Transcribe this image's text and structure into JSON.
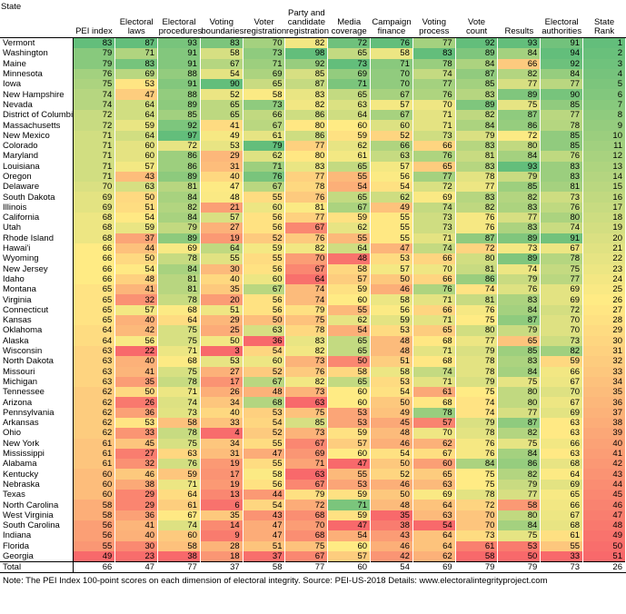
{
  "table": {
    "columns": [
      "State",
      "PEI index",
      "Electoral laws",
      "Electoral procedures",
      "Voting boundaries",
      "Voter registration",
      "Party and candidate registration",
      "Media coverage",
      "Campaign finance",
      "Voting process",
      "Vote count",
      "Results",
      "Electoral authorities",
      "State Rank"
    ],
    "rows": [
      [
        "Vermont",
        83,
        87,
        93,
        83,
        70,
        82,
        72,
        76,
        77,
        92,
        93,
        91,
        1
      ],
      [
        "Washington",
        79,
        71,
        91,
        58,
        73,
        98,
        65,
        58,
        83,
        89,
        84,
        94,
        2
      ],
      [
        "Maine",
        79,
        83,
        91,
        67,
        71,
        92,
        73,
        71,
        78,
        84,
        66,
        92,
        3
      ],
      [
        "Minnesota",
        76,
        69,
        88,
        54,
        69,
        85,
        69,
        70,
        74,
        87,
        82,
        84,
        4
      ],
      [
        "Iowa",
        75,
        53,
        91,
        90,
        65,
        87,
        71,
        70,
        77,
        85,
        77,
        77,
        5
      ],
      [
        "New Hampshire",
        74,
        47,
        88,
        52,
        58,
        83,
        65,
        67,
        76,
        83,
        89,
        90,
        6
      ],
      [
        "Nevada",
        74,
        64,
        89,
        65,
        73,
        82,
        63,
        57,
        70,
        89,
        75,
        85,
        7
      ],
      [
        "District of Columbi",
        72,
        64,
        85,
        65,
        66,
        86,
        64,
        67,
        71,
        82,
        87,
        77,
        8
      ],
      [
        "Massachusetts",
        72,
        59,
        92,
        41,
        67,
        80,
        60,
        60,
        71,
        84,
        86,
        78,
        9
      ],
      [
        "New Mexico",
        71,
        64,
        97,
        49,
        61,
        86,
        59,
        52,
        73,
        79,
        72,
        85,
        10
      ],
      [
        "Colorado",
        71,
        60,
        72,
        53,
        79,
        77,
        62,
        66,
        66,
        83,
        80,
        85,
        11
      ],
      [
        "Maryland",
        71,
        60,
        86,
        29,
        62,
        80,
        61,
        63,
        76,
        81,
        84,
        76,
        12
      ],
      [
        "Louisiana",
        71,
        57,
        86,
        31,
        71,
        83,
        65,
        57,
        65,
        83,
        93,
        83,
        13
      ],
      [
        "Oregon",
        71,
        43,
        89,
        40,
        76,
        77,
        55,
        56,
        77,
        78,
        79,
        83,
        14
      ],
      [
        "Delaware",
        70,
        63,
        81,
        47,
        67,
        78,
        54,
        54,
        72,
        77,
        85,
        81,
        15
      ],
      [
        "South Dakota",
        69,
        50,
        84,
        48,
        55,
        76,
        65,
        62,
        69,
        83,
        82,
        73,
        16
      ],
      [
        "Illinois",
        69,
        51,
        82,
        21,
        60,
        81,
        67,
        49,
        74,
        82,
        83,
        76,
        17
      ],
      [
        "California",
        68,
        54,
        84,
        57,
        56,
        77,
        59,
        55,
        73,
        76,
        77,
        80,
        18
      ],
      [
        "Utah",
        68,
        59,
        79,
        27,
        56,
        67,
        62,
        55,
        73,
        76,
        83,
        74,
        19
      ],
      [
        "Rhode Island",
        68,
        37,
        89,
        19,
        52,
        76,
        55,
        55,
        71,
        87,
        89,
        91,
        20
      ],
      [
        "Hawai'i",
        66,
        44,
        69,
        64,
        59,
        82,
        64,
        47,
        74,
        72,
        73,
        67,
        21
      ],
      [
        "Wyoming",
        66,
        50,
        78,
        55,
        55,
        70,
        48,
        53,
        66,
        80,
        89,
        78,
        22
      ],
      [
        "New Jersey",
        66,
        54,
        84,
        30,
        56,
        67,
        58,
        57,
        70,
        81,
        74,
        75,
        23
      ],
      [
        "Idaho",
        66,
        48,
        81,
        40,
        60,
        64,
        57,
        50,
        66,
        86,
        79,
        77,
        24
      ],
      [
        "Montana",
        65,
        41,
        81,
        35,
        67,
        74,
        59,
        46,
        76,
        74,
        76,
        69,
        25
      ],
      [
        "Virginia",
        65,
        32,
        78,
        20,
        56,
        74,
        60,
        58,
        71,
        81,
        83,
        69,
        26
      ],
      [
        "Connecticut",
        65,
        57,
        68,
        51,
        56,
        79,
        55,
        56,
        66,
        76,
        84,
        72,
        27
      ],
      [
        "Kansas",
        65,
        40,
        64,
        29,
        50,
        75,
        62,
        59,
        71,
        75,
        87,
        70,
        28
      ],
      [
        "Oklahoma",
        64,
        42,
        75,
        25,
        63,
        78,
        54,
        53,
        65,
        80,
        79,
        70,
        29
      ],
      [
        "Alaska",
        64,
        56,
        75,
        50,
        36,
        83,
        65,
        48,
        68,
        77,
        65,
        73,
        30
      ],
      [
        "Wisconsin",
        63,
        22,
        71,
        3,
        54,
        82,
        65,
        48,
        71,
        79,
        85,
        82,
        31
      ],
      [
        "North Dakota",
        63,
        40,
        68,
        53,
        60,
        73,
        50,
        51,
        68,
        78,
        83,
        59,
        32
      ],
      [
        "Missouri",
        63,
        41,
        75,
        27,
        52,
        76,
        58,
        58,
        74,
        78,
        84,
        66,
        33
      ],
      [
        "Michigan",
        63,
        35,
        78,
        17,
        67,
        82,
        65,
        53,
        71,
        79,
        75,
        67,
        34
      ],
      [
        "Tennessee",
        62,
        50,
        71,
        26,
        48,
        73,
        60,
        54,
        61,
        75,
        80,
        70,
        35
      ],
      [
        "Arizona",
        62,
        26,
        74,
        34,
        68,
        63,
        60,
        50,
        68,
        74,
        80,
        67,
        36
      ],
      [
        "Pennsylvania",
        62,
        36,
        73,
        40,
        53,
        75,
        53,
        49,
        78,
        74,
        77,
        69,
        37
      ],
      [
        "Arkansas",
        62,
        53,
        58,
        33,
        54,
        85,
        53,
        45,
        57,
        79,
        87,
        63,
        38
      ],
      [
        "Ohio",
        62,
        33,
        78,
        4,
        52,
        73,
        59,
        48,
        70,
        78,
        82,
        63,
        39
      ],
      [
        "New York",
        61,
        45,
        75,
        34,
        55,
        67,
        57,
        46,
        62,
        76,
        75,
        66,
        40
      ],
      [
        "Mississippi",
        61,
        27,
        63,
        31,
        47,
        69,
        60,
        54,
        67,
        76,
        84,
        63,
        41
      ],
      [
        "Alabama",
        61,
        32,
        76,
        19,
        55,
        71,
        47,
        50,
        60,
        84,
        86,
        68,
        42
      ],
      [
        "Kentucky",
        60,
        46,
        59,
        17,
        58,
        63,
        55,
        52,
        65,
        75,
        82,
        64,
        43
      ],
      [
        "Nebraska",
        60,
        38,
        71,
        19,
        56,
        67,
        53,
        46,
        63,
        75,
        79,
        69,
        44
      ],
      [
        "Texas",
        60,
        29,
        64,
        13,
        44,
        79,
        59,
        50,
        69,
        78,
        77,
        65,
        45
      ],
      [
        "North Carolina",
        58,
        29,
        61,
        6,
        54,
        72,
        71,
        48,
        64,
        72,
        58,
        66,
        46
      ],
      [
        "West Virginia",
        58,
        36,
        67,
        35,
        43,
        68,
        59,
        35,
        63,
        70,
        80,
        67,
        47
      ],
      [
        "South Carolina",
        56,
        41,
        74,
        14,
        47,
        70,
        47,
        38,
        54,
        70,
        84,
        68,
        48
      ],
      [
        "Indiana",
        56,
        40,
        60,
        9,
        47,
        68,
        54,
        43,
        64,
        73,
        75,
        61,
        49
      ],
      [
        "Florida",
        55,
        30,
        58,
        28,
        51,
        75,
        60,
        46,
        64,
        61,
        53,
        55,
        50
      ],
      [
        "Georgia",
        49,
        23,
        38,
        18,
        37,
        67,
        57,
        42,
        62,
        58,
        50,
        33,
        51
      ],
      [
        "Total",
        66,
        47,
        77,
        37,
        58,
        77,
        60,
        54,
        69,
        79,
        79,
        73,
        26
      ]
    ],
    "note": "Note: The PEI Index 100-point scores on each dimension of electoral integrity. Source: PEI-US-2018 Details: www.electoralintegrityproject.com"
  }
}
